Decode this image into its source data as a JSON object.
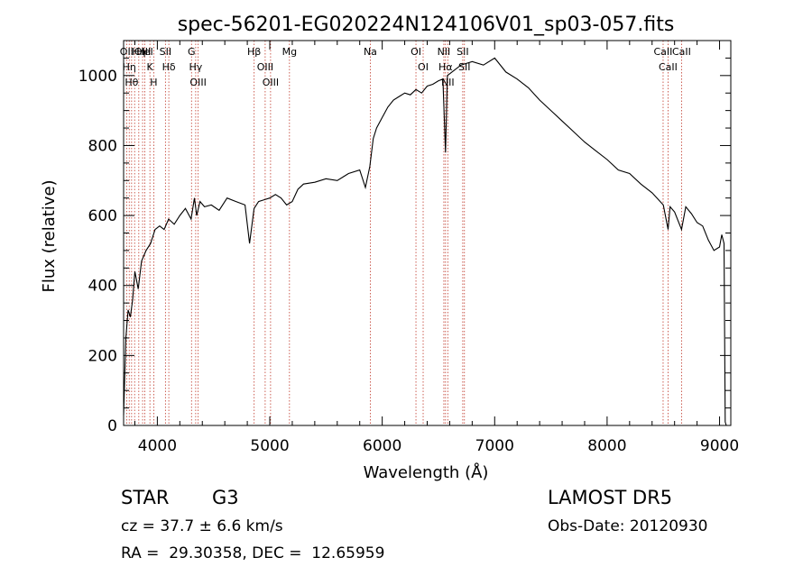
{
  "chart_data": {
    "type": "line",
    "title": "spec-56201-EG020224N124106V01_sp03-057.fits",
    "xlabel": "Wavelength (Å)",
    "ylabel": "Flux (relative)",
    "xlim": [
      3700,
      9100
    ],
    "ylim": [
      0,
      1100
    ],
    "xticks": [
      4000,
      5000,
      6000,
      7000,
      8000,
      9000
    ],
    "xtick_labels": [
      "4000",
      "5000",
      "6000",
      "7000",
      "8000",
      "9000"
    ],
    "yticks": [
      0,
      200,
      400,
      600,
      800,
      1000
    ],
    "ytick_labels": [
      "0",
      "200",
      "400",
      "600",
      "800",
      "1000"
    ],
    "grid": false,
    "line_color": "#000000",
    "marker_line_color": "#c0392b",
    "series": [
      {
        "x": [
          3700,
          3720,
          3740,
          3760,
          3780,
          3800,
          3830,
          3860,
          3900,
          3940,
          3980,
          4020,
          4060,
          4100,
          4150,
          4200,
          4250,
          4300,
          4330,
          4350,
          4380,
          4420,
          4480,
          4550,
          4620,
          4700,
          4780,
          4820,
          4860,
          4900,
          4950,
          5000,
          5050,
          5100,
          5150,
          5200,
          5250,
          5300,
          5400,
          5500,
          5600,
          5700,
          5800,
          5850,
          5890,
          5920,
          5950,
          6000,
          6050,
          6100,
          6150,
          6200,
          6250,
          6300,
          6350,
          6400,
          6450,
          6500,
          6540,
          6563,
          6580,
          6620,
          6700,
          6800,
          6900,
          7000,
          7100,
          7200,
          7300,
          7400,
          7500,
          7600,
          7700,
          7800,
          7900,
          8000,
          8100,
          8200,
          8300,
          8400,
          8500,
          8542,
          8560,
          8600,
          8662,
          8700,
          8750,
          8800,
          8850,
          8900,
          8950,
          9000,
          9020,
          9040,
          9050,
          9060,
          9080
        ],
        "values": [
          30,
          250,
          330,
          310,
          360,
          440,
          390,
          470,
          500,
          520,
          560,
          570,
          560,
          590,
          575,
          600,
          620,
          590,
          650,
          600,
          640,
          625,
          630,
          615,
          650,
          640,
          630,
          520,
          620,
          640,
          645,
          650,
          660,
          650,
          630,
          640,
          675,
          690,
          695,
          705,
          700,
          720,
          730,
          680,
          740,
          820,
          850,
          880,
          910,
          930,
          940,
          950,
          945,
          960,
          950,
          970,
          975,
          985,
          990,
          780,
          1000,
          1010,
          1030,
          1040,
          1030,
          1050,
          1010,
          990,
          965,
          930,
          900,
          870,
          840,
          810,
          785,
          760,
          730,
          720,
          690,
          665,
          630,
          560,
          625,
          610,
          560,
          625,
          605,
          580,
          570,
          530,
          500,
          510,
          545,
          520,
          10,
          0,
          0
        ]
      }
    ],
    "line_markers": [
      {
        "wl": 3727,
        "label": "OII"
      },
      {
        "wl": 3750,
        "label": "Hη"
      },
      {
        "wl": 3771,
        "label": "Hθ"
      },
      {
        "wl": 3798,
        "label": ""
      },
      {
        "wl": 3835,
        "label": "Hη"
      },
      {
        "wl": 3869,
        "label": "OIII"
      },
      {
        "wl": 3889,
        "label": "HeI"
      },
      {
        "wl": 3934,
        "label": "K"
      },
      {
        "wl": 3968,
        "label": "H"
      },
      {
        "wl": 4072,
        "label": "SII"
      },
      {
        "wl": 4102,
        "label": "Hδ"
      },
      {
        "wl": 4304,
        "label": "G"
      },
      {
        "wl": 4341,
        "label": "Hγ"
      },
      {
        "wl": 4363,
        "label": "OIII"
      },
      {
        "wl": 4861,
        "label": "Hβ"
      },
      {
        "wl": 4959,
        "label": "OIII"
      },
      {
        "wl": 5007,
        "label": "OIII"
      },
      {
        "wl": 5175,
        "label": "Mg"
      },
      {
        "wl": 5894,
        "label": "Na"
      },
      {
        "wl": 6300,
        "label": "OI"
      },
      {
        "wl": 6364,
        "label": "OI"
      },
      {
        "wl": 6548,
        "label": "NII"
      },
      {
        "wl": 6563,
        "label": "Hα"
      },
      {
        "wl": 6583,
        "label": "NII"
      },
      {
        "wl": 6716,
        "label": "SII"
      },
      {
        "wl": 6731,
        "label": "SII"
      },
      {
        "wl": 8498,
        "label": "CaII"
      },
      {
        "wl": 8542,
        "label": "CaII"
      },
      {
        "wl": 8662,
        "label": "CaII"
      }
    ]
  },
  "info": {
    "obj_class": "STAR",
    "subclass": "G3",
    "cz": "cz = 37.7 ± 6.6 km/s",
    "radec": "RA =  29.30358, DEC =  12.65959",
    "survey": "LAMOST DR5",
    "obs_date": "Obs-Date: 20120930"
  }
}
